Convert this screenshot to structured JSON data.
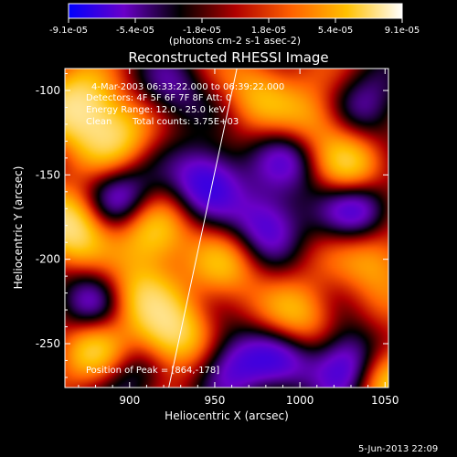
{
  "chart_data": {
    "type": "heatmap",
    "title": "Reconstructed RHESSI Image",
    "xlabel": "Heliocentric X (arcsec)",
    "ylabel": "Heliocentric Y (arcsec)",
    "xlim": [
      862,
      1052
    ],
    "ylim": [
      -276,
      -87
    ],
    "x_ticks": [
      900,
      950,
      1000,
      1050
    ],
    "y_ticks": [
      -100,
      -150,
      -200,
      -250
    ],
    "colorbar": {
      "ticks": [
        "-9.1e-05",
        "-5.4e-05",
        "-1.8e-05",
        "1.8e-05",
        "5.4e-05",
        "9.1e-05"
      ],
      "unit_label": "(photons cm-2 s-1 asec-2)",
      "range": [
        -9.1e-05,
        9.1e-05
      ],
      "colors": [
        "#0000ff",
        "#6a00c8",
        "#000000",
        "#b00000",
        "#ff6000",
        "#ffc000",
        "#ffffff"
      ]
    },
    "annotations": {
      "time_range": "4-Mar-2003 06:33:22.000 to 06:39:22.000",
      "detectors": "Detectors: 4F 5F 6F 7F 8F  Att: 0",
      "energy_range": "Energy Range: 12.0 - 25.0 keV",
      "algorithm": "Clean",
      "total_counts": "Total counts: 3.75E+03",
      "peak_position": "Position of Peak = [864,-178]"
    },
    "limb_line": {
      "x": [
        923,
        963
      ],
      "y": [
        -276,
        -87
      ]
    },
    "peak": {
      "x": 864,
      "y": -178
    },
    "blobs": [
      {
        "x": 870,
        "y": -110,
        "v": 1.0
      },
      {
        "x": 892,
        "y": -128,
        "v": 0.7
      },
      {
        "x": 866,
        "y": -180,
        "v": 1.0
      },
      {
        "x": 912,
        "y": -185,
        "v": 0.8
      },
      {
        "x": 925,
        "y": -245,
        "v": 0.9
      },
      {
        "x": 905,
        "y": -220,
        "v": 0.6
      },
      {
        "x": 1032,
        "y": -148,
        "v": 0.9
      },
      {
        "x": 1008,
        "y": -118,
        "v": 0.6
      },
      {
        "x": 1050,
        "y": -268,
        "v": 0.8
      },
      {
        "x": 1000,
        "y": -235,
        "v": 0.6
      },
      {
        "x": 975,
        "y": -100,
        "v": 0.5
      },
      {
        "x": 880,
        "y": -255,
        "v": 0.7
      },
      {
        "x": 956,
        "y": -205,
        "v": 0.5
      },
      {
        "x": 1045,
        "y": -200,
        "v": 0.6
      },
      {
        "x": 1035,
        "y": -168,
        "v": -1.0
      },
      {
        "x": 1028,
        "y": -262,
        "v": -1.0
      },
      {
        "x": 945,
        "y": -152,
        "v": -0.9
      },
      {
        "x": 896,
        "y": -165,
        "v": -0.8
      },
      {
        "x": 980,
        "y": -178,
        "v": -0.8
      },
      {
        "x": 960,
        "y": -262,
        "v": -0.7
      },
      {
        "x": 995,
        "y": -140,
        "v": -0.6
      },
      {
        "x": 900,
        "y": -270,
        "v": -0.5
      },
      {
        "x": 878,
        "y": -225,
        "v": -0.6
      },
      {
        "x": 1040,
        "y": -110,
        "v": -0.6
      },
      {
        "x": 925,
        "y": -100,
        "v": -0.5
      },
      {
        "x": 990,
        "y": -260,
        "v": -0.6
      }
    ]
  },
  "footer": {
    "date_stamp": "5-Jun-2013 22:09"
  }
}
